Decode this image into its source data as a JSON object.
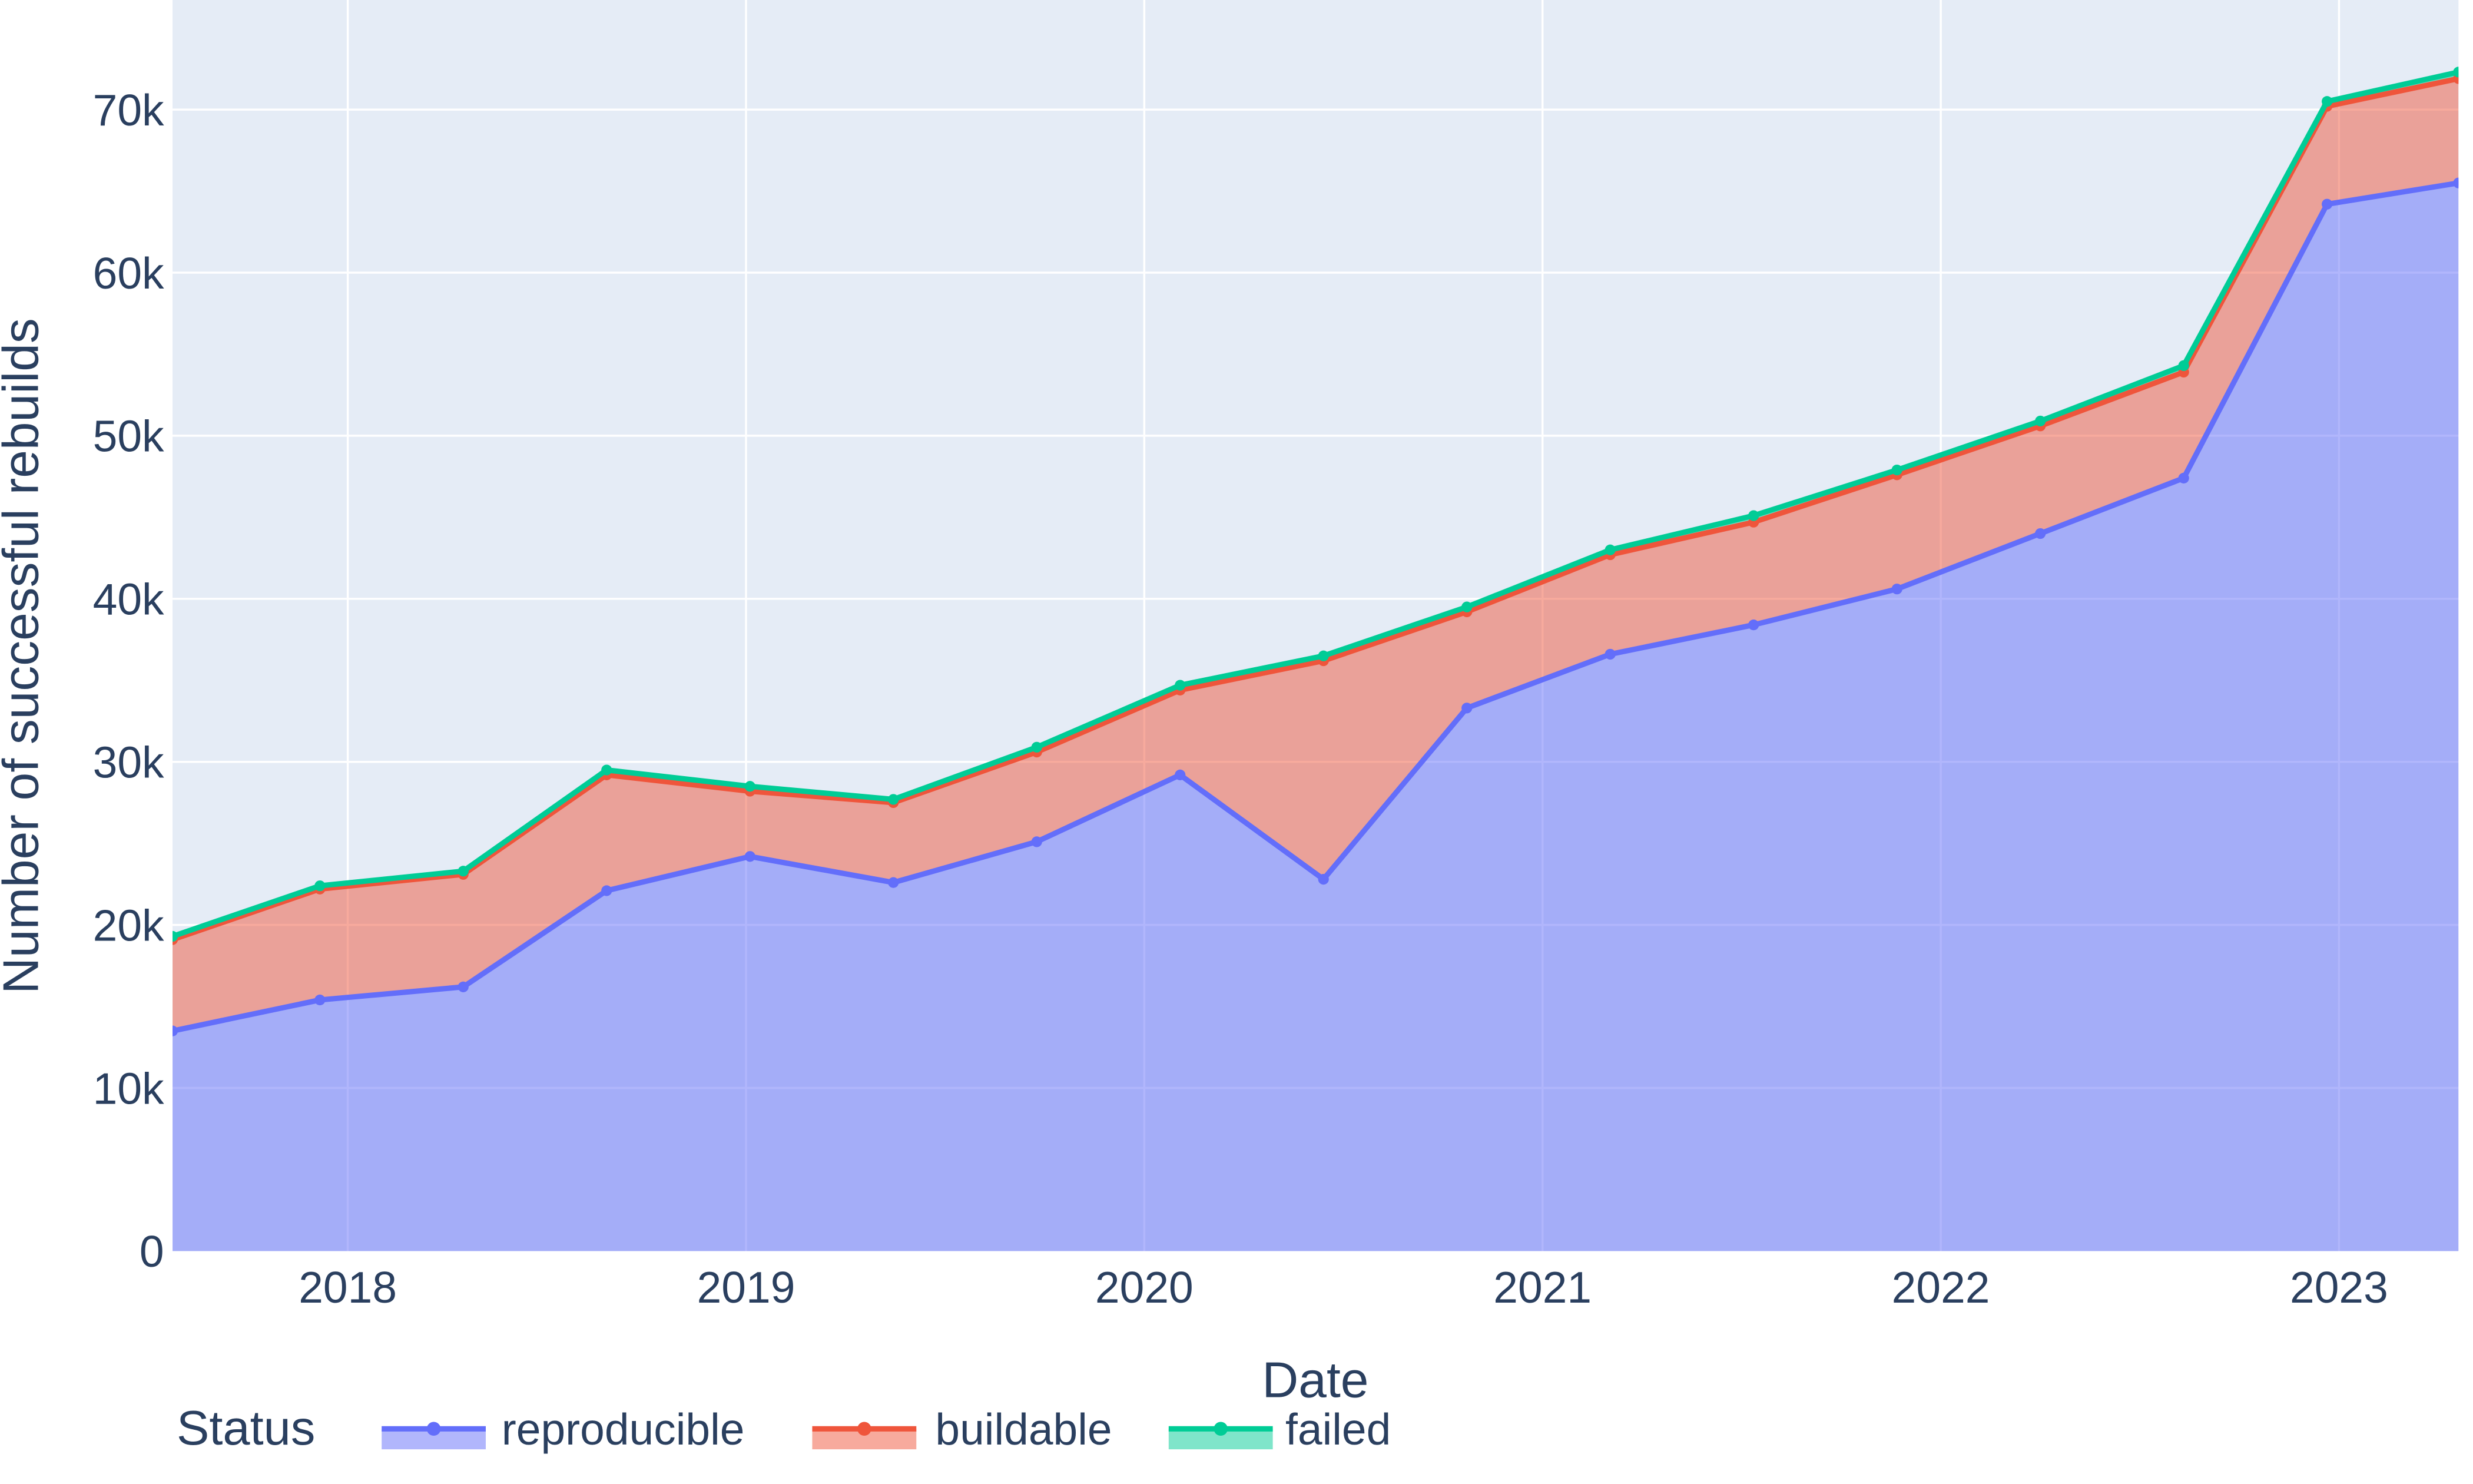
{
  "chart_data": {
    "type": "area",
    "stacked": true,
    "x": [
      2017.56,
      2017.93,
      2018.29,
      2018.65,
      2019.01,
      2019.37,
      2019.73,
      2020.09,
      2020.45,
      2020.81,
      2021.17,
      2021.53,
      2021.89,
      2022.25,
      2022.61,
      2022.97,
      2023.3
    ],
    "x_labels": [
      "2017-07",
      "2017-12",
      "2018-04",
      "2018-08",
      "2019-01",
      "2019-05",
      "2019-09",
      "2020-02",
      "2020-06",
      "2020-10",
      "2021-03",
      "2021-07",
      "2021-11",
      "2022-04",
      "2022-08",
      "2022-12",
      "2023-04"
    ],
    "series": [
      {
        "name": "reproducible",
        "color": "#636EFA",
        "values": [
          13500,
          15400,
          16200,
          22100,
          24200,
          22600,
          25100,
          29200,
          22800,
          33300,
          36600,
          38400,
          40600,
          44000,
          47400,
          64200,
          65500
        ]
      },
      {
        "name": "buildable",
        "color": "#EF553B",
        "values": [
          5600,
          6800,
          6900,
          7100,
          4000,
          4900,
          5500,
          5200,
          13400,
          5900,
          6100,
          6300,
          7000,
          6600,
          6500,
          6000,
          6400
        ]
      },
      {
        "name": "failed",
        "color": "#00CC96",
        "values": [
          200,
          200,
          200,
          300,
          300,
          200,
          300,
          300,
          300,
          300,
          300,
          400,
          300,
          300,
          400,
          300,
          400
        ]
      }
    ],
    "stacked_totals": [
      19300,
      22400,
      23300,
      29500,
      28500,
      27700,
      30900,
      34700,
      36500,
      39500,
      43000,
      45100,
      47900,
      50900,
      54300,
      70500,
      72300
    ],
    "xlabel": "Date",
    "ylabel": "Number of successful rebuilds",
    "xlim": [
      2017.56,
      2023.3
    ],
    "ylim": [
      0,
      76720
    ],
    "x_ticks": {
      "values": [
        2018,
        2019,
        2020,
        2021,
        2022,
        2023
      ],
      "labels": [
        "2018",
        "2019",
        "2020",
        "2021",
        "2022",
        "2023"
      ]
    },
    "y_ticks": {
      "values": [
        0,
        10000,
        20000,
        30000,
        40000,
        50000,
        60000,
        70000
      ],
      "labels": [
        "0",
        "10k",
        "20k",
        "30k",
        "40k",
        "50k",
        "60k",
        "70k"
      ]
    },
    "grid": true,
    "legend": {
      "title": "Status",
      "position": "bottom"
    },
    "colors": {
      "plot_background": "#E5ECF6",
      "grid": "#FFFFFF",
      "text": "#2A3F5F",
      "fill_opacity": 0.5
    }
  }
}
